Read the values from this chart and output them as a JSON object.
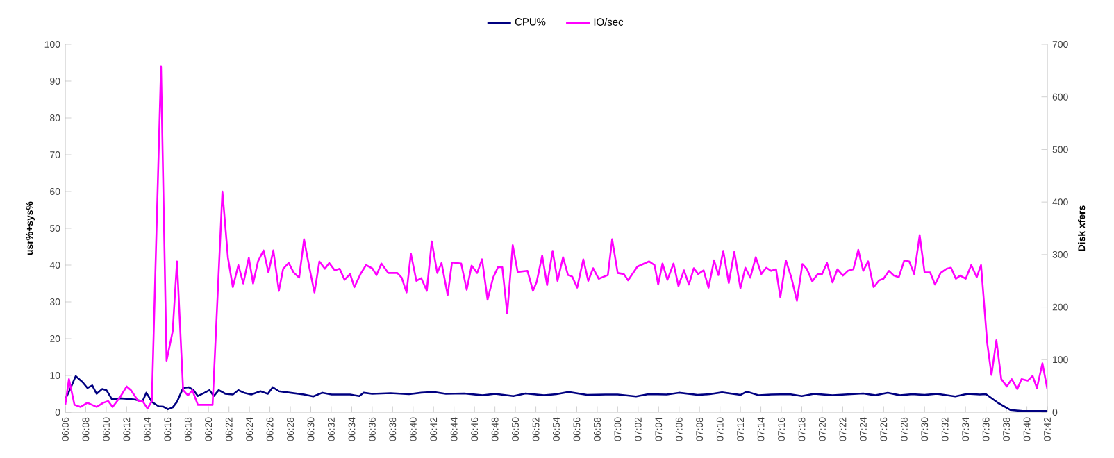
{
  "chart_data": {
    "type": "line",
    "ylabel": "usr%+sys%",
    "y2label": "Disk xfers",
    "legend": "top",
    "marker": "none",
    "grid": false,
    "xlim": [
      6.1,
      7.7
    ],
    "ylim": [
      0,
      100
    ],
    "y2lim": [
      0,
      700
    ],
    "yticks": [
      0,
      10,
      20,
      30,
      40,
      50,
      60,
      70,
      80,
      90,
      100
    ],
    "y2ticks": [
      0,
      100,
      200,
      300,
      400,
      500,
      600,
      700
    ],
    "xticks": [
      {
        "value": 6.1,
        "label": "06:06"
      },
      {
        "value": 6.1333,
        "label": "06:08"
      },
      {
        "value": 6.1667,
        "label": "06:10"
      },
      {
        "value": 6.2,
        "label": "06:12"
      },
      {
        "value": 6.2333,
        "label": "06:14"
      },
      {
        "value": 6.2667,
        "label": "06:16"
      },
      {
        "value": 6.3,
        "label": "06:18"
      },
      {
        "value": 6.3333,
        "label": "06:20"
      },
      {
        "value": 6.3667,
        "label": "06:22"
      },
      {
        "value": 6.4,
        "label": "06:24"
      },
      {
        "value": 6.4333,
        "label": "06:26"
      },
      {
        "value": 6.4667,
        "label": "06:28"
      },
      {
        "value": 6.5,
        "label": "06:30"
      },
      {
        "value": 6.5333,
        "label": "06:32"
      },
      {
        "value": 6.5667,
        "label": "06:34"
      },
      {
        "value": 6.6,
        "label": "06:36"
      },
      {
        "value": 6.6333,
        "label": "06:38"
      },
      {
        "value": 6.6667,
        "label": "06:40"
      },
      {
        "value": 6.7,
        "label": "06:42"
      },
      {
        "value": 6.7333,
        "label": "06:44"
      },
      {
        "value": 6.7667,
        "label": "06:46"
      },
      {
        "value": 6.8,
        "label": "06:48"
      },
      {
        "value": 6.8333,
        "label": "06:50"
      },
      {
        "value": 6.8667,
        "label": "06:52"
      },
      {
        "value": 6.9,
        "label": "06:54"
      },
      {
        "value": 6.9333,
        "label": "06:56"
      },
      {
        "value": 6.9667,
        "label": "06:58"
      },
      {
        "value": 7.0,
        "label": "07:00"
      },
      {
        "value": 7.0333,
        "label": "07:02"
      },
      {
        "value": 7.0667,
        "label": "07:04"
      },
      {
        "value": 7.1,
        "label": "07:06"
      },
      {
        "value": 7.1333,
        "label": "07:08"
      },
      {
        "value": 7.1667,
        "label": "07:10"
      },
      {
        "value": 7.2,
        "label": "07:12"
      },
      {
        "value": 7.2333,
        "label": "07:14"
      },
      {
        "value": 7.2667,
        "label": "07:16"
      },
      {
        "value": 7.3,
        "label": "07:18"
      },
      {
        "value": 7.3333,
        "label": "07:20"
      },
      {
        "value": 7.3667,
        "label": "07:22"
      },
      {
        "value": 7.4,
        "label": "07:24"
      },
      {
        "value": 7.4333,
        "label": "07:26"
      },
      {
        "value": 7.4667,
        "label": "07:28"
      },
      {
        "value": 7.5,
        "label": "07:30"
      },
      {
        "value": 7.5333,
        "label": "07:32"
      },
      {
        "value": 7.5667,
        "label": "07:34"
      },
      {
        "value": 7.6,
        "label": "07:36"
      },
      {
        "value": 7.6333,
        "label": "07:38"
      },
      {
        "value": 7.6667,
        "label": "07:40"
      },
      {
        "value": 7.7,
        "label": "07:42"
      }
    ],
    "series": [
      {
        "name": "CPU%",
        "color": "#000080",
        "x": [
          6.1,
          6.108,
          6.117,
          6.128,
          6.136,
          6.144,
          6.151,
          6.16,
          6.167,
          6.176,
          6.189,
          6.211,
          6.226,
          6.232,
          6.241,
          6.252,
          6.26,
          6.267,
          6.275,
          6.282,
          6.292,
          6.301,
          6.309,
          6.316,
          6.327,
          6.335,
          6.342,
          6.35,
          6.361,
          6.373,
          6.382,
          6.391,
          6.403,
          6.418,
          6.43,
          6.438,
          6.448,
          6.466,
          6.489,
          6.504,
          6.519,
          6.534,
          6.564,
          6.579,
          6.586,
          6.6,
          6.63,
          6.66,
          6.68,
          6.7,
          6.72,
          6.75,
          6.78,
          6.8,
          6.83,
          6.85,
          6.88,
          6.9,
          6.92,
          6.95,
          6.98,
          7.0,
          7.03,
          7.05,
          7.08,
          7.1,
          7.13,
          7.15,
          7.17,
          7.2,
          7.21,
          7.23,
          7.25,
          7.28,
          7.3,
          7.32,
          7.35,
          7.37,
          7.4,
          7.42,
          7.44,
          7.46,
          7.48,
          7.5,
          7.52,
          7.55,
          7.57,
          7.59,
          7.6,
          7.62,
          7.64,
          7.66,
          7.68,
          7.7
        ],
        "values": [
          3.5,
          6.3,
          9.8,
          8.2,
          6.6,
          7.3,
          5,
          6.3,
          6,
          3.5,
          3.8,
          3.5,
          3,
          5.3,
          2.8,
          1.6,
          1.5,
          0.8,
          1.3,
          2.8,
          6.6,
          6.8,
          6,
          4.4,
          5.3,
          6,
          4.4,
          6,
          5,
          4.8,
          6,
          5.3,
          4.8,
          5.7,
          5,
          6.8,
          5.7,
          5.3,
          4.8,
          4.3,
          5.3,
          4.8,
          4.8,
          4.4,
          5.3,
          5,
          5.2,
          4.9,
          5.3,
          5.5,
          5,
          5.1,
          4.6,
          5,
          4.4,
          5.1,
          4.6,
          4.9,
          5.5,
          4.7,
          4.8,
          4.8,
          4.3,
          4.9,
          4.8,
          5.3,
          4.7,
          4.9,
          5.4,
          4.7,
          5.6,
          4.6,
          4.8,
          4.9,
          4.4,
          5,
          4.6,
          4.8,
          5.1,
          4.6,
          5.3,
          4.6,
          4.9,
          4.7,
          5,
          4.3,
          5,
          4.8,
          4.9,
          2.5,
          0.6,
          0.3,
          0.3,
          0.3
        ]
      },
      {
        "name": "IO/sec",
        "color": "#ff00ff",
        "axis": "y2",
        "x": [
          6.1,
          6.106,
          6.115,
          6.125,
          6.136,
          6.151,
          6.162,
          6.17,
          6.177,
          6.189,
          6.2,
          6.207,
          6.219,
          6.226,
          6.234,
          6.241,
          6.256,
          6.265,
          6.275,
          6.282,
          6.292,
          6.3,
          6.307,
          6.316,
          6.327,
          6.34,
          6.356,
          6.365,
          6.373,
          6.382,
          6.39,
          6.399,
          6.406,
          6.414,
          6.423,
          6.431,
          6.439,
          6.448,
          6.455,
          6.464,
          6.472,
          6.481,
          6.489,
          6.498,
          6.506,
          6.514,
          6.523,
          6.53,
          6.539,
          6.547,
          6.555,
          6.564,
          6.571,
          6.581,
          6.59,
          6.6,
          6.607,
          6.615,
          6.626,
          6.641,
          6.648,
          6.656,
          6.663,
          6.672,
          6.68,
          6.689,
          6.697,
          6.706,
          6.713,
          6.723,
          6.73,
          6.745,
          6.754,
          6.762,
          6.771,
          6.779,
          6.788,
          6.797,
          6.805,
          6.812,
          6.82,
          6.829,
          6.837,
          6.853,
          6.862,
          6.868,
          6.877,
          6.885,
          6.894,
          6.902,
          6.911,
          6.919,
          6.926,
          6.934,
          6.944,
          6.952,
          6.96,
          6.969,
          6.984,
          6.991,
          7.0,
          7.01,
          7.017,
          7.032,
          7.051,
          7.06,
          7.066,
          7.073,
          7.081,
          7.091,
          7.099,
          7.108,
          7.116,
          7.124,
          7.131,
          7.14,
          7.148,
          7.157,
          7.164,
          7.172,
          7.181,
          7.19,
          7.2,
          7.208,
          7.216,
          7.225,
          7.234,
          7.242,
          7.25,
          7.258,
          7.265,
          7.274,
          7.283,
          7.292,
          7.301,
          7.308,
          7.317,
          7.326,
          7.333,
          7.341,
          7.35,
          7.358,
          7.367,
          7.375,
          7.384,
          7.392,
          7.4,
          7.408,
          7.417,
          7.426,
          7.433,
          7.442,
          7.45,
          7.458,
          7.467,
          7.475,
          7.483,
          7.492,
          7.5,
          7.509,
          7.517,
          7.526,
          7.536,
          7.543,
          7.551,
          7.558,
          7.567,
          7.576,
          7.585,
          7.592,
          7.602,
          7.609,
          7.617,
          7.625,
          7.634,
          7.642,
          7.651,
          7.658,
          7.668,
          7.676,
          7.683,
          7.692,
          7.7
        ],
        "values": [
          14,
          63,
          14,
          10,
          18,
          10,
          18,
          21,
          10,
          28,
          49,
          42,
          21,
          21,
          7,
          21,
          658,
          98,
          154,
          287,
          42,
          32,
          42,
          14,
          14,
          14,
          420,
          294,
          238,
          280,
          245,
          294,
          245,
          287,
          308,
          266,
          308,
          231,
          273,
          284,
          266,
          256,
          329,
          273,
          228,
          287,
          273,
          284,
          270,
          273,
          252,
          263,
          238,
          263,
          280,
          274,
          261,
          283,
          265,
          265,
          256,
          228,
          302,
          250,
          255,
          231,
          325,
          265,
          284,
          223,
          285,
          283,
          233,
          279,
          265,
          291,
          214,
          256,
          276,
          276,
          188,
          318,
          267,
          269,
          231,
          248,
          298,
          242,
          307,
          250,
          295,
          261,
          258,
          237,
          291,
          250,
          274,
          254,
          261,
          329,
          265,
          263,
          251,
          277,
          287,
          280,
          243,
          283,
          252,
          283,
          240,
          270,
          243,
          274,
          263,
          270,
          237,
          289,
          261,
          307,
          246,
          305,
          236,
          275,
          256,
          295,
          263,
          275,
          269,
          272,
          219,
          289,
          256,
          212,
          282,
          273,
          249,
          263,
          263,
          284,
          247,
          272,
          260,
          269,
          272,
          309,
          269,
          287,
          238,
          251,
          254,
          269,
          260,
          257,
          289,
          287,
          263,
          337,
          266,
          266,
          243,
          265,
          273,
          275,
          254,
          260,
          254,
          280,
          257,
          280,
          132,
          71,
          137,
          63,
          49,
          63,
          44,
          63,
          60,
          69,
          46,
          93,
          44
        ]
      }
    ]
  }
}
